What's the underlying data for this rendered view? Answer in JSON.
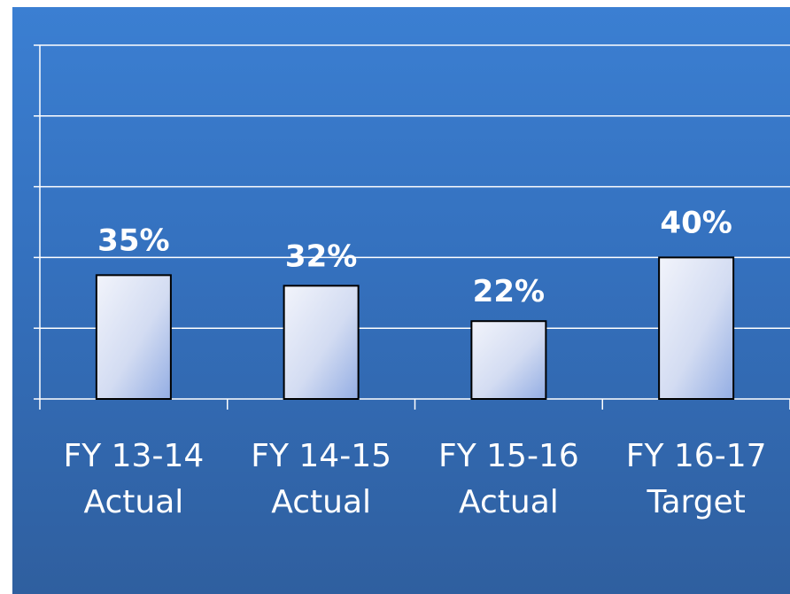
{
  "chart_data": {
    "type": "bar",
    "categories": [
      [
        "FY 13-14",
        "Actual"
      ],
      [
        "FY 14-15",
        "Actual"
      ],
      [
        "FY 15-16",
        "Actual"
      ],
      [
        "FY 16-17",
        "Target"
      ]
    ],
    "values": [
      35,
      32,
      22,
      40
    ],
    "data_labels": [
      "35%",
      "32%",
      "22%",
      "40%"
    ],
    "title": "",
    "xlabel": "",
    "ylabel": "",
    "ylim": [
      0,
      100
    ],
    "grid": true,
    "legend": "none",
    "colors": {
      "background_top": "#3b7fd2",
      "background_bottom": "#2f5f9f",
      "bar_fill_light": "#eef1fa",
      "bar_fill_dark": "#9bb4e6",
      "bar_stroke": "#000000",
      "grid": "#ffffff",
      "text": "#ffffff"
    }
  }
}
